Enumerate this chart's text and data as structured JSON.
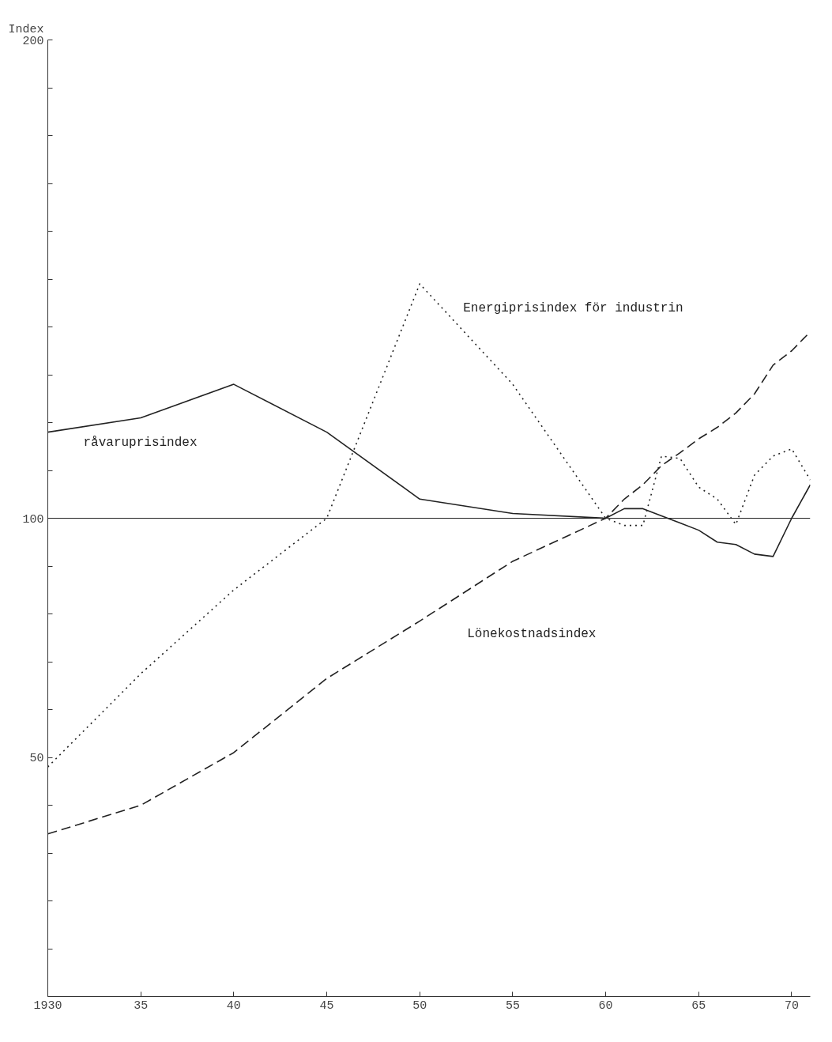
{
  "chart_data": {
    "type": "line",
    "ylabel": "Index",
    "x": [
      1930,
      1935,
      1940,
      1945,
      1950,
      1955,
      1960,
      1961,
      1962,
      1963,
      1964,
      1965,
      1966,
      1967,
      1968,
      1969,
      1970,
      1971
    ],
    "series": [
      {
        "name": "råvaruprisindex",
        "color": "#222222",
        "line_style": "solid",
        "values": [
          118,
          121,
          128,
          118,
          104,
          101,
          100,
          102,
          102,
          100.5,
          99,
          97.5,
          95,
          94.5,
          92.5,
          92,
          100,
          107
        ]
      },
      {
        "name": "Energiprisindex för industrin",
        "color": "#222222",
        "line_style": "dotted",
        "values": [
          48,
          67.5,
          85,
          100,
          149,
          128,
          100,
          98.5,
          98.5,
          113,
          112.5,
          106.5,
          104,
          98.7,
          109,
          113,
          114.5,
          108
        ]
      },
      {
        "name": "Lönekostnadsindex",
        "color": "#222222",
        "line_style": "dashed",
        "values": [
          34,
          40,
          51,
          66.5,
          78.5,
          91,
          100,
          104,
          107,
          111,
          113.7,
          116.6,
          119,
          122,
          126,
          132,
          135,
          139
        ]
      }
    ],
    "xlim": [
      1930,
      1971
    ],
    "ylim": [
      0,
      200
    ],
    "xticks": [
      {
        "value": 1930,
        "label": "1930"
      },
      {
        "value": 1935,
        "label": "35"
      },
      {
        "value": 1940,
        "label": "40"
      },
      {
        "value": 1945,
        "label": "45"
      },
      {
        "value": 1950,
        "label": "50"
      },
      {
        "value": 1955,
        "label": "55"
      },
      {
        "value": 1960,
        "label": "60"
      },
      {
        "value": 1965,
        "label": "65"
      },
      {
        "value": 1970,
        "label": "70"
      }
    ],
    "yticks": [
      {
        "value": 10,
        "label": null
      },
      {
        "value": 20,
        "label": null
      },
      {
        "value": 30,
        "label": null
      },
      {
        "value": 40,
        "label": null
      },
      50,
      {
        "value": 60,
        "label": null
      },
      {
        "value": 70,
        "label": null
      },
      {
        "value": 80,
        "label": null
      },
      {
        "value": 90,
        "label": null
      },
      100,
      {
        "value": 110,
        "label": null
      },
      {
        "value": 120,
        "label": null
      },
      {
        "value": 130,
        "label": null
      },
      {
        "value": 140,
        "label": null
      },
      {
        "value": 150,
        "label": null
      },
      {
        "value": 160,
        "label": null
      },
      {
        "value": 170,
        "label": null
      },
      {
        "value": 180,
        "label": null
      },
      {
        "value": 190,
        "label": null
      },
      200
    ],
    "ref_lines": [
      {
        "axis": "y",
        "value": 100,
        "color": "#222222",
        "line_style": "solid"
      }
    ],
    "grid": false
  }
}
